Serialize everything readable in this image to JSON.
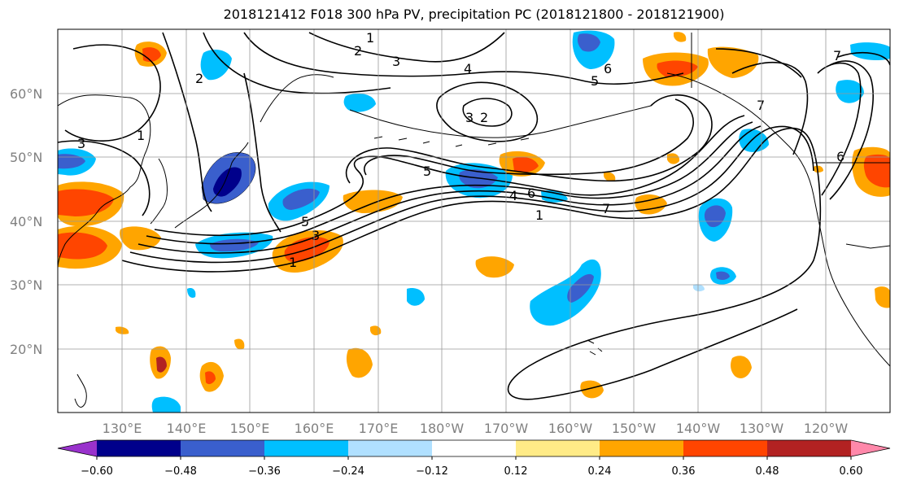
{
  "title": "2018121412 F018 300 hPa PV, precipitation PC (2018121800 - 2018121900)",
  "lat_labels": [
    "60°N",
    "50°N",
    "40°N",
    "30°N",
    "20°N"
  ],
  "lon_labels": [
    "130°E",
    "140°E",
    "150°E",
    "160°E",
    "170°E",
    "180°W",
    "170°W",
    "160°W",
    "150°W",
    "140°W",
    "130°W",
    "120°W"
  ],
  "colorbar": {
    "colors": [
      "#9932cc",
      "#00008b",
      "#3a5fcd",
      "#00bfff",
      "#b0e0ff",
      "#ffffff",
      "#ffeb87",
      "#ffa500",
      "#ff4500",
      "#b22222",
      "#ff88aa"
    ],
    "tick_labels": [
      "−0.60",
      "−0.48",
      "−0.36",
      "−0.24",
      "−0.12",
      "0.12",
      "0.24",
      "0.36",
      "0.48",
      "0.60"
    ]
  },
  "pv_contour_labels": [
    "1",
    "2",
    "3",
    "4",
    "5",
    "6",
    "7",
    "3",
    "2",
    "1",
    "5",
    "3",
    "1",
    "4",
    "6",
    "7",
    "5",
    "6",
    "7",
    "3",
    "2",
    "1"
  ],
  "anomaly_colors": {
    "strong_neg": "#00008b",
    "mid_neg": "#3a5fcd",
    "weak_neg": "#00bfff",
    "weak_pos": "#ffa500",
    "mid_pos": "#ff4500",
    "strong_pos": "#b22222",
    "faint_pos": "#ffeb87"
  }
}
